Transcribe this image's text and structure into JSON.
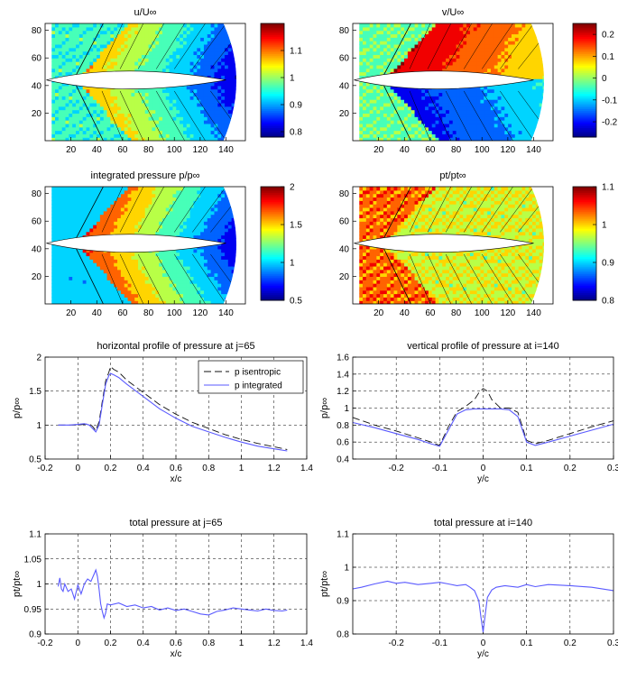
{
  "figure": {
    "caption": ""
  },
  "chart_data": [
    {
      "type": "heatmap",
      "id": "u",
      "title": "u/U∞",
      "xticks": [
        20,
        40,
        60,
        80,
        100,
        120,
        140
      ],
      "yticks": [
        20,
        40,
        60,
        80
      ],
      "xlim": [
        0,
        155
      ],
      "ylim": [
        0,
        85
      ],
      "colorbar": {
        "min": 0.78,
        "max": 1.2,
        "ticks": [
          0.8,
          0.9,
          1,
          1.1
        ],
        "tick_labels": [
          "0.8",
          "0.9",
          "1",
          "1.1"
        ]
      },
      "field": "u"
    },
    {
      "type": "heatmap",
      "id": "v",
      "title": "v/U∞",
      "xticks": [
        20,
        40,
        60,
        80,
        100,
        120,
        140
      ],
      "yticks": [
        20,
        40,
        60,
        80
      ],
      "xlim": [
        0,
        155
      ],
      "ylim": [
        0,
        85
      ],
      "colorbar": {
        "min": -0.27,
        "max": 0.25,
        "ticks": [
          0.2,
          0.1,
          0,
          -0.1,
          -0.2
        ],
        "tick_labels": [
          "0.2",
          "0.1",
          "0",
          "-0.1",
          "-0.2"
        ]
      },
      "field": "v"
    },
    {
      "type": "heatmap",
      "id": "p",
      "title": "integrated pressure p/p∞",
      "xticks": [
        20,
        40,
        60,
        80,
        100,
        120,
        140
      ],
      "yticks": [
        20,
        40,
        60,
        80
      ],
      "xlim": [
        0,
        155
      ],
      "ylim": [
        0,
        85
      ],
      "colorbar": {
        "min": 0.5,
        "max": 2,
        "ticks": [
          2,
          1.5,
          1,
          0.5
        ],
        "tick_labels": [
          "2",
          "1.5",
          "1",
          "0.5"
        ]
      },
      "field": "p"
    },
    {
      "type": "heatmap",
      "id": "pt",
      "title": "pt/pt∞",
      "xticks": [
        20,
        40,
        60,
        80,
        100,
        120,
        140
      ],
      "yticks": [
        20,
        40,
        60,
        80
      ],
      "xlim": [
        0,
        155
      ],
      "ylim": [
        0,
        85
      ],
      "colorbar": {
        "min": 0.8,
        "max": 1.1,
        "ticks": [
          1.1,
          1,
          0.9,
          0.8
        ],
        "tick_labels": [
          "1.1",
          "1",
          "0.9",
          "0.8"
        ]
      },
      "field": "pt"
    },
    {
      "type": "line",
      "id": "hp",
      "title": "horizontal profile of pressure at j=65",
      "xlabel": "x/c",
      "ylabel": "p/p∞",
      "xlim": [
        -0.2,
        1.4
      ],
      "ylim": [
        0.5,
        2
      ],
      "xticks": [
        -0.2,
        0,
        0.2,
        0.4,
        0.6,
        0.8,
        1,
        1.2,
        1.4
      ],
      "yticks": [
        0.5,
        1,
        1.5,
        2
      ],
      "legend": [
        "p isentropic",
        "p integrated"
      ],
      "series": [
        {
          "name": "p isentropic",
          "style": "dashed",
          "color": "#111111",
          "x": [
            -0.12,
            -0.1,
            -0.05,
            0.0,
            0.04,
            0.07,
            0.09,
            0.11,
            0.13,
            0.15,
            0.17,
            0.19,
            0.2,
            0.22,
            0.25,
            0.3,
            0.4,
            0.5,
            0.6,
            0.7,
            0.8,
            0.9,
            1.0,
            1.1,
            1.2,
            1.28
          ],
          "y": [
            1.0,
            1.0,
            1.0,
            1.0,
            1.01,
            1.02,
            0.98,
            0.92,
            1.05,
            1.35,
            1.65,
            1.78,
            1.86,
            1.82,
            1.78,
            1.66,
            1.48,
            1.3,
            1.16,
            1.04,
            0.95,
            0.86,
            0.79,
            0.73,
            0.68,
            0.64
          ]
        },
        {
          "name": "p integrated",
          "style": "solid",
          "color": "#5a5aff",
          "x": [
            -0.12,
            -0.1,
            -0.05,
            0.0,
            0.04,
            0.07,
            0.09,
            0.11,
            0.13,
            0.15,
            0.17,
            0.19,
            0.2,
            0.22,
            0.25,
            0.3,
            0.4,
            0.5,
            0.6,
            0.7,
            0.8,
            0.9,
            1.0,
            1.1,
            1.2,
            1.28
          ],
          "y": [
            1.0,
            1.0,
            1.0,
            1.01,
            1.02,
            1.0,
            0.95,
            0.9,
            1.0,
            1.3,
            1.6,
            1.73,
            1.76,
            1.74,
            1.7,
            1.6,
            1.42,
            1.24,
            1.1,
            0.98,
            0.9,
            0.82,
            0.75,
            0.69,
            0.65,
            0.62
          ]
        }
      ]
    },
    {
      "type": "line",
      "id": "vp",
      "title": "vertical profile of pressure at i=140",
      "xlabel": "y/c",
      "ylabel": "p/p∞",
      "xlim": [
        -0.3,
        0.3
      ],
      "ylim": [
        0.4,
        1.6
      ],
      "xticks": [
        -0.2,
        -0.1,
        0,
        0.1,
        0.2,
        0.3
      ],
      "yticks": [
        0.4,
        0.6,
        0.8,
        1,
        1.2,
        1.4,
        1.6
      ],
      "series": [
        {
          "name": "p isentropic",
          "style": "dashed",
          "color": "#111111",
          "x": [
            -0.3,
            -0.25,
            -0.2,
            -0.15,
            -0.12,
            -0.1,
            -0.08,
            -0.06,
            -0.04,
            -0.02,
            -0.01,
            0.0,
            0.01,
            0.02,
            0.04,
            0.06,
            0.08,
            0.1,
            0.12,
            0.15,
            0.2,
            0.25,
            0.3
          ],
          "y": [
            0.89,
            0.8,
            0.73,
            0.65,
            0.6,
            0.56,
            0.78,
            0.96,
            1.02,
            1.1,
            1.18,
            1.23,
            1.2,
            1.1,
            1.0,
            1.0,
            0.95,
            0.62,
            0.58,
            0.62,
            0.7,
            0.78,
            0.85
          ]
        },
        {
          "name": "p integrated",
          "style": "solid",
          "color": "#5a5aff",
          "x": [
            -0.3,
            -0.25,
            -0.2,
            -0.15,
            -0.12,
            -0.1,
            -0.08,
            -0.06,
            -0.04,
            -0.02,
            0.0,
            0.02,
            0.04,
            0.06,
            0.08,
            0.1,
            0.12,
            0.15,
            0.2,
            0.25,
            0.3
          ],
          "y": [
            0.83,
            0.77,
            0.7,
            0.63,
            0.58,
            0.55,
            0.74,
            0.93,
            0.98,
            0.99,
            0.99,
            0.99,
            0.99,
            0.98,
            0.9,
            0.6,
            0.56,
            0.6,
            0.67,
            0.74,
            0.81
          ]
        }
      ]
    },
    {
      "type": "line",
      "id": "tph",
      "title": "total pressure at j=65",
      "xlabel": "x/c",
      "ylabel": "pt/pt∞",
      "xlim": [
        -0.2,
        1.4
      ],
      "ylim": [
        0.9,
        1.1
      ],
      "xticks": [
        -0.2,
        0,
        0.2,
        0.4,
        0.6,
        0.8,
        1,
        1.2,
        1.4
      ],
      "yticks": [
        0.9,
        0.95,
        1,
        1.05,
        1.1
      ],
      "series": [
        {
          "name": "pt",
          "style": "solid",
          "color": "#5a5aff",
          "x": [
            -0.12,
            -0.11,
            -0.1,
            -0.09,
            -0.08,
            -0.06,
            -0.04,
            -0.02,
            0.0,
            0.02,
            0.04,
            0.06,
            0.08,
            0.1,
            0.11,
            0.12,
            0.13,
            0.14,
            0.15,
            0.16,
            0.17,
            0.18,
            0.2,
            0.25,
            0.3,
            0.35,
            0.4,
            0.45,
            0.5,
            0.55,
            0.6,
            0.65,
            0.7,
            0.75,
            0.8,
            0.85,
            0.9,
            0.95,
            1.0,
            1.05,
            1.1,
            1.15,
            1.2,
            1.25,
            1.28
          ],
          "y": [
            0.995,
            1.012,
            0.99,
            0.985,
            1.0,
            0.985,
            0.99,
            0.97,
            0.998,
            0.98,
            1.0,
            1.01,
            1.005,
            1.02,
            1.028,
            1.015,
            0.99,
            0.96,
            0.945,
            0.932,
            0.942,
            0.96,
            0.958,
            0.962,
            0.955,
            0.958,
            0.952,
            0.955,
            0.948,
            0.952,
            0.947,
            0.95,
            0.945,
            0.94,
            0.938,
            0.945,
            0.948,
            0.952,
            0.95,
            0.948,
            0.946,
            0.95,
            0.947,
            0.946,
            0.948
          ]
        }
      ]
    },
    {
      "type": "line",
      "id": "tpv",
      "title": "total pressure at i=140",
      "xlabel": "y/c",
      "ylabel": "pt/pt∞",
      "xlim": [
        -0.3,
        0.3
      ],
      "ylim": [
        0.8,
        1.1
      ],
      "xticks": [
        -0.2,
        -0.1,
        0,
        0.1,
        0.2,
        0.3
      ],
      "yticks": [
        0.8,
        0.9,
        1,
        1.1
      ],
      "series": [
        {
          "name": "pt",
          "style": "solid",
          "color": "#5a5aff",
          "x": [
            -0.3,
            -0.28,
            -0.25,
            -0.22,
            -0.2,
            -0.18,
            -0.15,
            -0.12,
            -0.1,
            -0.08,
            -0.06,
            -0.04,
            -0.03,
            -0.02,
            -0.01,
            -0.005,
            0.0,
            0.005,
            0.01,
            0.02,
            0.03,
            0.05,
            0.08,
            0.1,
            0.12,
            0.15,
            0.2,
            0.25,
            0.3
          ],
          "y": [
            0.935,
            0.94,
            0.95,
            0.958,
            0.952,
            0.955,
            0.948,
            0.952,
            0.955,
            0.95,
            0.945,
            0.948,
            0.94,
            0.93,
            0.9,
            0.85,
            0.805,
            0.86,
            0.91,
            0.932,
            0.94,
            0.945,
            0.94,
            0.948,
            0.942,
            0.948,
            0.945,
            0.94,
            0.93
          ]
        }
      ]
    }
  ]
}
